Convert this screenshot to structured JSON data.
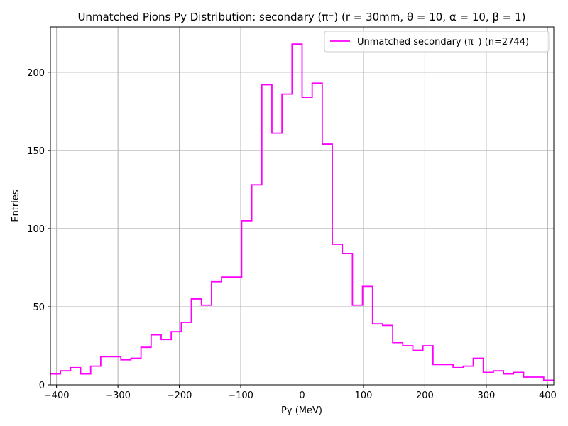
{
  "chart_data": {
    "type": "histogram-step",
    "title": "Unmatched Pions Py Distribution: secondary (π⁻) (r = 30mm, θ = 10, α = 10, β = 1)",
    "xlabel": "Py (MeV)",
    "ylabel": "Entries",
    "xlim": [
      -410,
      410
    ],
    "ylim": [
      0,
      229
    ],
    "xticks": [
      -400,
      -300,
      -200,
      -100,
      0,
      100,
      200,
      300,
      400
    ],
    "xtick_labels": [
      "−400",
      "−300",
      "−200",
      "−100",
      "0",
      "100",
      "200",
      "300",
      "400"
    ],
    "yticks": [
      0,
      50,
      100,
      150,
      200
    ],
    "ytick_labels": [
      "0",
      "50",
      "100",
      "150",
      "200"
    ],
    "grid": true,
    "legend_position": "top-right",
    "series": [
      {
        "name": "Unmatched secondary (π⁻) (n=2744)",
        "color": "#ff00ff",
        "bin_edges": [
          -410,
          -393.6,
          -377.2,
          -360.8,
          -344.4,
          -328,
          -311.6,
          -295.2,
          -278.8,
          -262.4,
          -246,
          -229.6,
          -213.2,
          -196.8,
          -180.4,
          -164,
          -147.6,
          -131.2,
          -114.8,
          -98.4,
          -82,
          -65.6,
          -49.2,
          -32.8,
          -16.4,
          0,
          16.4,
          32.8,
          49.2,
          65.6,
          82,
          98.4,
          114.8,
          131.2,
          147.6,
          164,
          180.4,
          196.8,
          213.2,
          229.6,
          246,
          262.4,
          278.8,
          295.2,
          311.6,
          328,
          344.4,
          360.8,
          377.2,
          393.6,
          410
        ],
        "counts": [
          7,
          9,
          11,
          7,
          12,
          18,
          18,
          16,
          17,
          24,
          32,
          29,
          34,
          40,
          55,
          51,
          66,
          69,
          69,
          105,
          128,
          192,
          161,
          186,
          218,
          184,
          193,
          154,
          90,
          84,
          51,
          63,
          39,
          38,
          27,
          25,
          22,
          25,
          13,
          13,
          11,
          12,
          17,
          8,
          9,
          7,
          8,
          5,
          5,
          3
        ]
      }
    ]
  }
}
